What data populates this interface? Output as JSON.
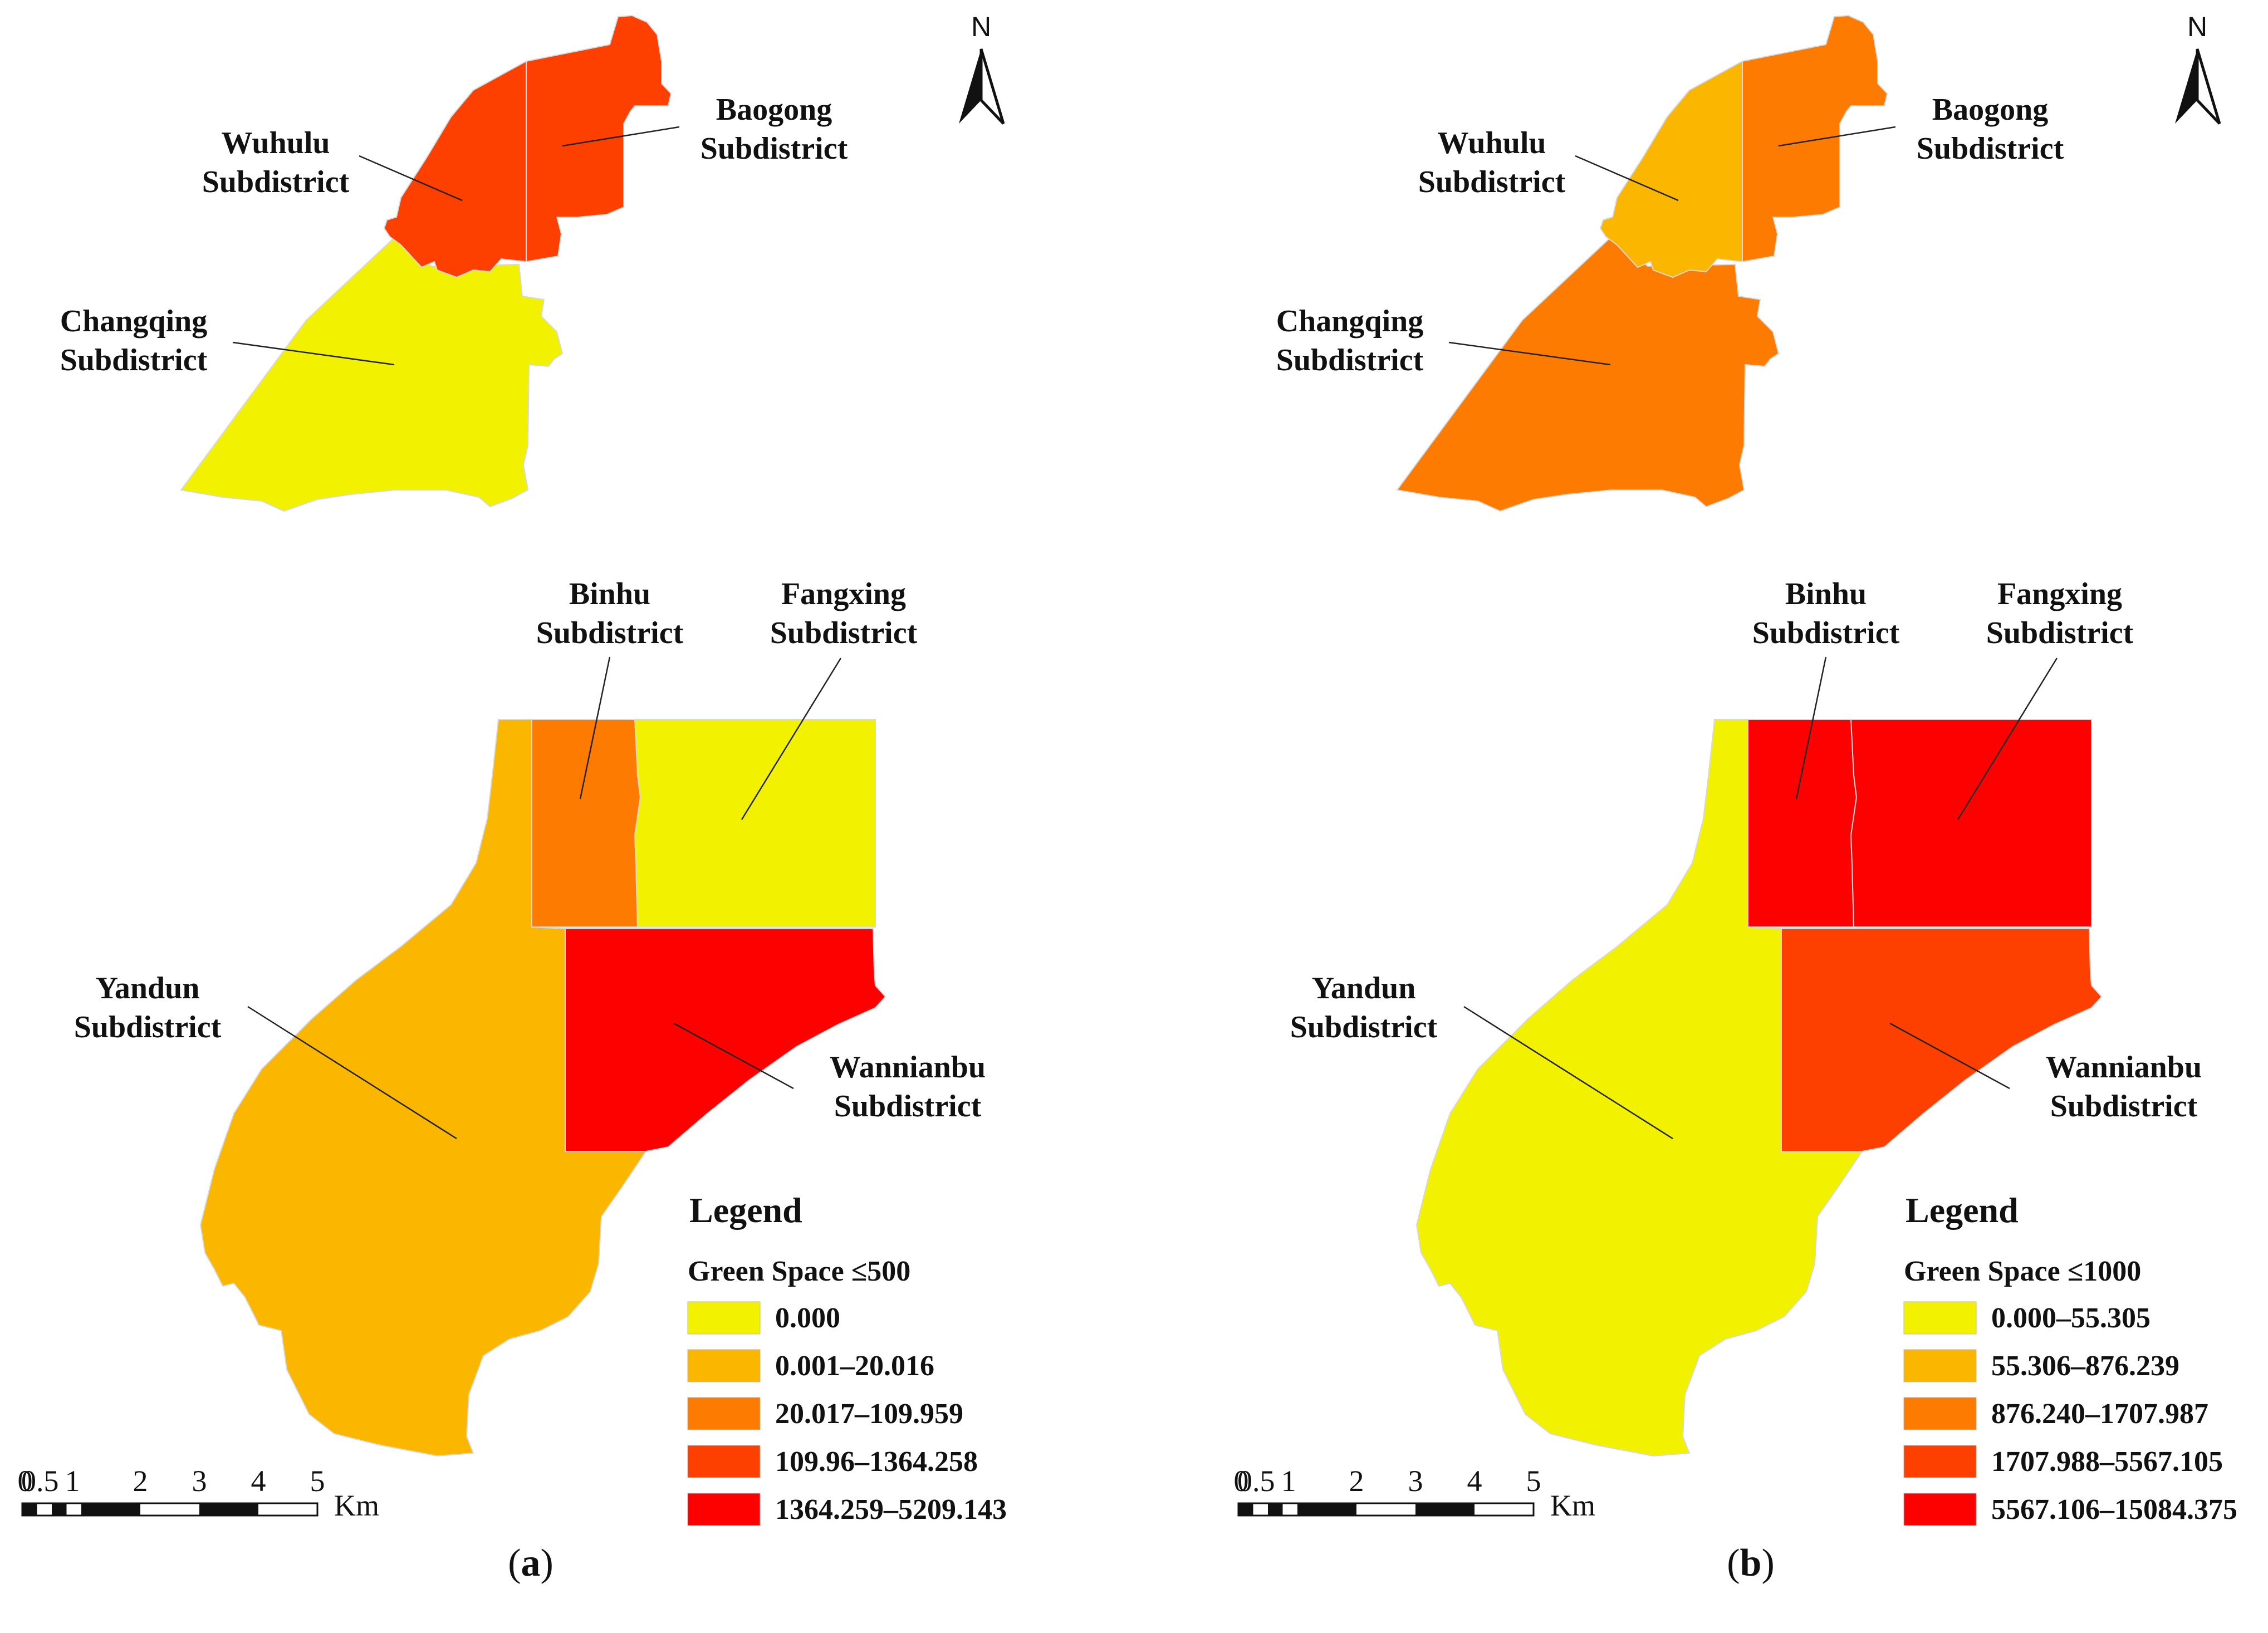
{
  "colors": {
    "class1": "#f2f200",
    "class2": "#fbb600",
    "class3": "#fc7b00",
    "class4": "#fd3f00",
    "class5": "#fd0101"
  },
  "north_label": "N",
  "scale_bar": {
    "ticks": [
      "0",
      "0.5",
      "1",
      "2",
      "3",
      "4",
      "5"
    ],
    "unit": "Km"
  },
  "legend_title": "Legend",
  "panels": [
    {
      "label_prefix": "(",
      "label_letter": "a",
      "label_suffix": ")",
      "legend_subtitle": "Green Space ≤500",
      "legend_items": [
        "0.000",
        "0.001–20.016",
        "20.017–109.959",
        "109.96–1364.258",
        "1364.259–5209.143"
      ],
      "regions": [
        {
          "name_line1": "Wuhulu",
          "name_line2": "Subdistrict",
          "class": 4
        },
        {
          "name_line1": "Baogong",
          "name_line2": "Subdistrict",
          "class": 4
        },
        {
          "name_line1": "Changqing",
          "name_line2": "Subdistrict",
          "class": 1
        },
        {
          "name_line1": "Binhu",
          "name_line2": "Subdistrict",
          "class": 3
        },
        {
          "name_line1": "Fangxing",
          "name_line2": "Subdistrict",
          "class": 1
        },
        {
          "name_line1": "Yandun",
          "name_line2": "Subdistrict",
          "class": 2
        },
        {
          "name_line1": "Wannianbu",
          "name_line2": "Subdistrict",
          "class": 5
        }
      ]
    },
    {
      "label_prefix": "(",
      "label_letter": "b",
      "label_suffix": ")",
      "legend_subtitle": "Green Space ≤1000",
      "legend_items": [
        "0.000–55.305",
        "55.306–876.239",
        "876.240–1707.987",
        "1707.988–5567.105",
        "5567.106–15084.375"
      ],
      "regions": [
        {
          "name_line1": "Wuhulu",
          "name_line2": "Subdistrict",
          "class": 2
        },
        {
          "name_line1": "Baogong",
          "name_line2": "Subdistrict",
          "class": 3
        },
        {
          "name_line1": "Changqing",
          "name_line2": "Subdistrict",
          "class": 3
        },
        {
          "name_line1": "Binhu",
          "name_line2": "Subdistrict",
          "class": 5
        },
        {
          "name_line1": "Fangxing",
          "name_line2": "Subdistrict",
          "class": 5
        },
        {
          "name_line1": "Yandun",
          "name_line2": "Subdistrict",
          "class": 1
        },
        {
          "name_line1": "Wannianbu",
          "name_line2": "Subdistrict",
          "class": 4
        }
      ]
    }
  ]
}
